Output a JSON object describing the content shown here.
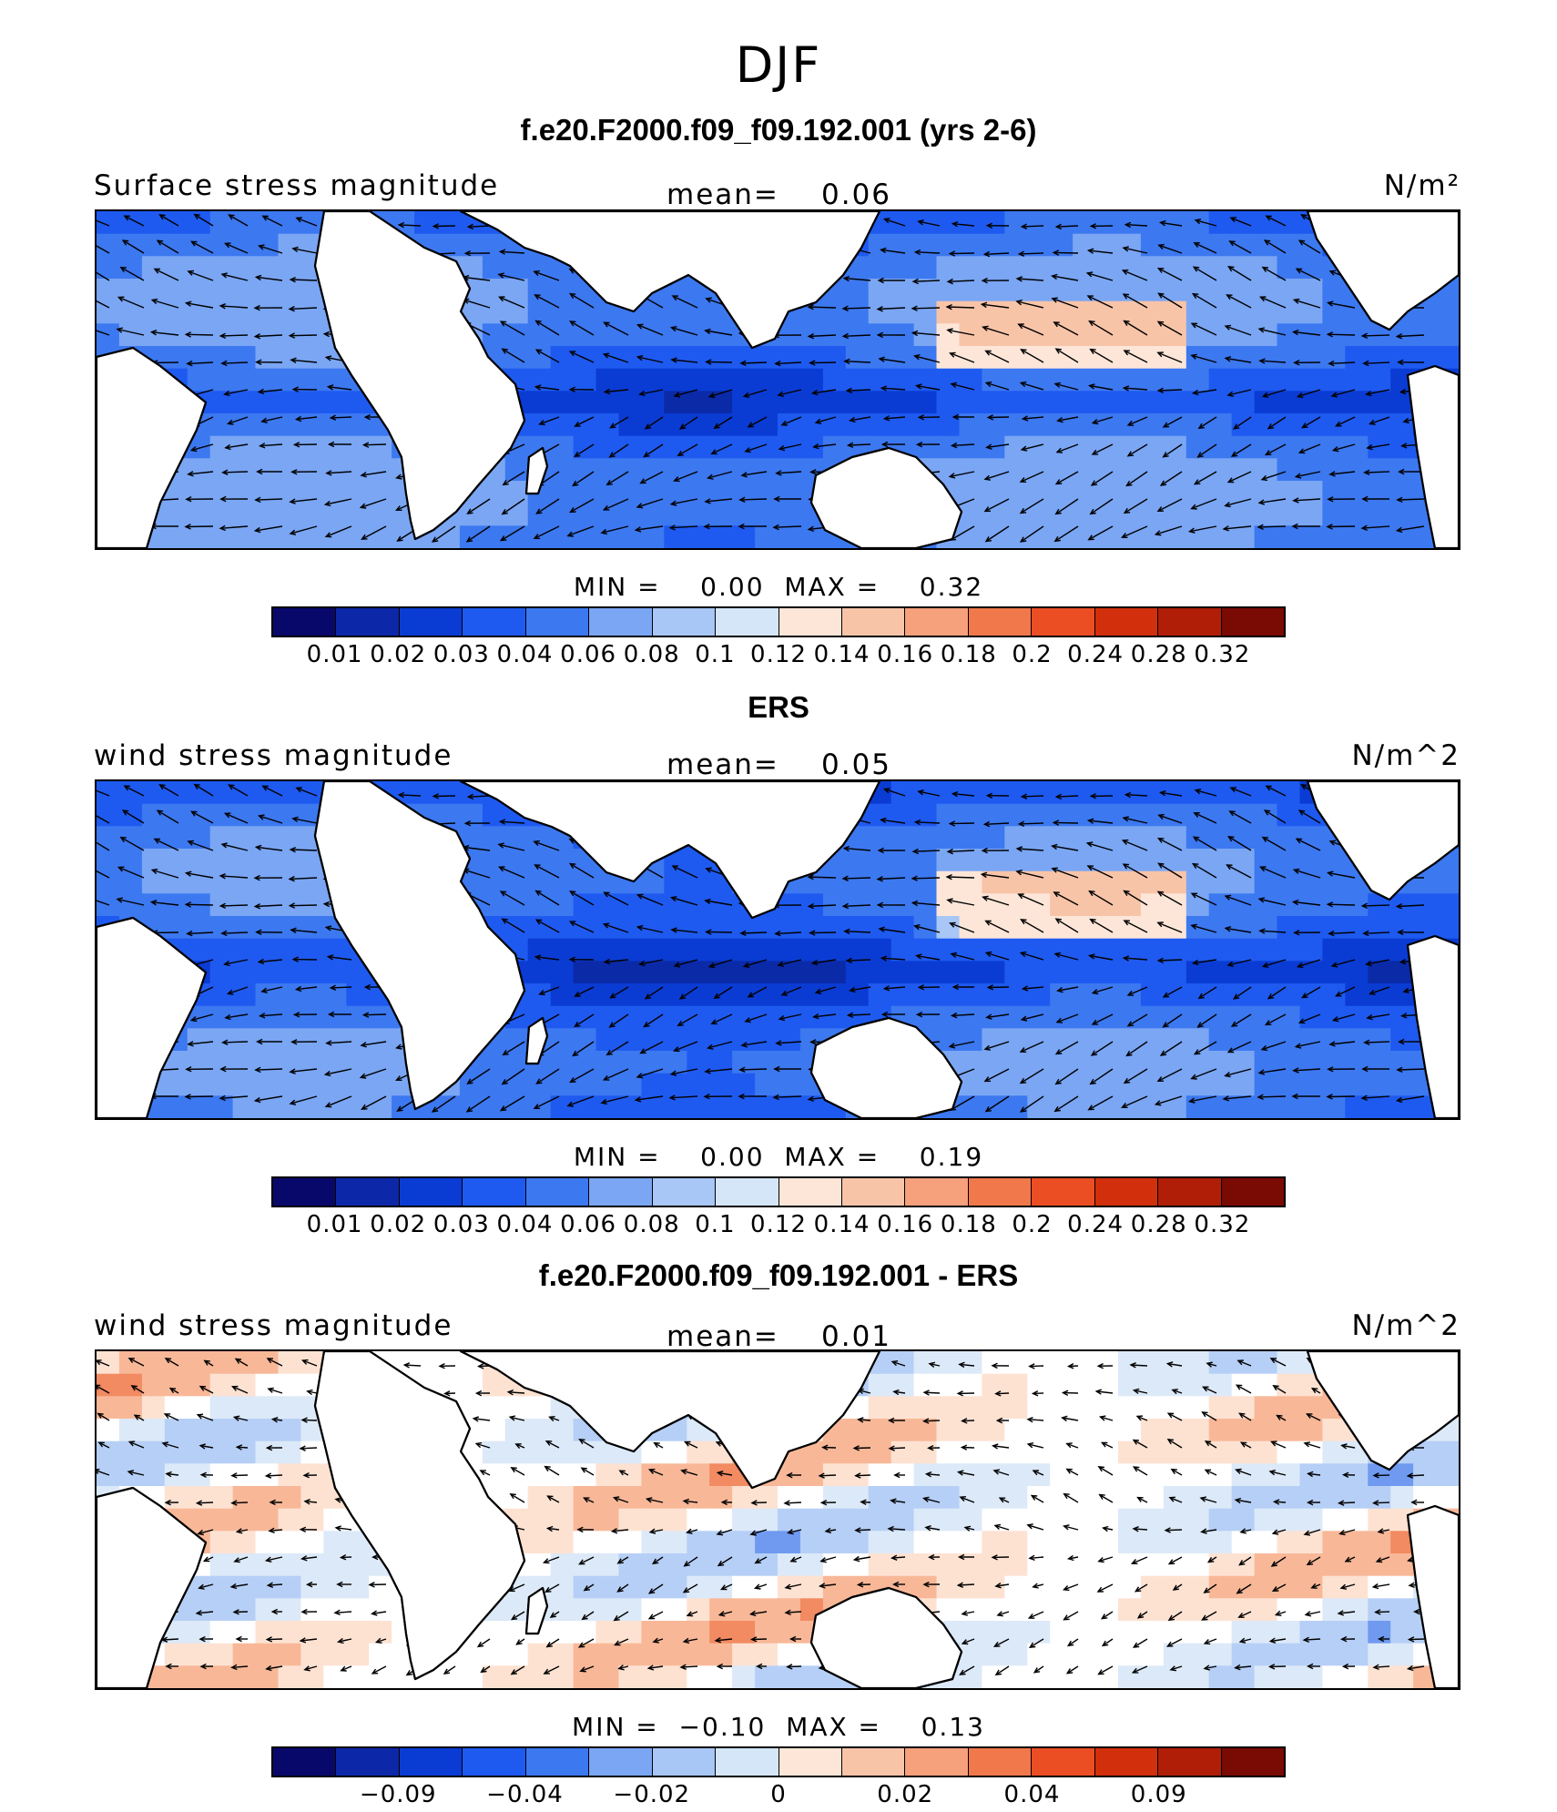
{
  "figure": {
    "season_title": "DJF"
  },
  "panels": [
    {
      "title": "f.e20.F2000.f09_f09.192.001 (yrs 2-6)",
      "variable_label": "Surface stress magnitude",
      "mean_label": "mean=",
      "mean_value": "0.06",
      "units": "N/m²",
      "min_max_text": "MIN =    0.00  MAX =    0.32",
      "colorbar_ticks": [
        "0.01",
        "0.02",
        "0.03",
        "0.04",
        "0.06",
        "0.08",
        "0.1",
        "0.12",
        "0.14",
        "0.16",
        "0.18",
        "0.2",
        "0.24",
        "0.28",
        "0.32"
      ],
      "colorbar_colors": [
        "#08086b",
        "#0c28a8",
        "#0a3cd4",
        "#1e5af0",
        "#3c78f0",
        "#7aa6f4",
        "#a8c6f6",
        "#d4e6f8",
        "#fde6d8",
        "#f8c4a8",
        "#f6a07c",
        "#f0784a",
        "#ec4e24",
        "#d2300c",
        "#b01e08",
        "#7a0a04"
      ],
      "map_style": "full"
    },
    {
      "title": "ERS",
      "variable_label": "wind stress magnitude",
      "mean_label": "mean=",
      "mean_value": "0.05",
      "units": "N/m^2",
      "min_max_text": "MIN =    0.00  MAX =    0.19",
      "colorbar_ticks": [
        "0.01",
        "0.02",
        "0.03",
        "0.04",
        "0.06",
        "0.08",
        "0.1",
        "0.12",
        "0.14",
        "0.16",
        "0.18",
        "0.2",
        "0.24",
        "0.28",
        "0.32"
      ],
      "colorbar_colors": [
        "#08086b",
        "#0c28a8",
        "#0a3cd4",
        "#1e5af0",
        "#3c78f0",
        "#7aa6f4",
        "#a8c6f6",
        "#d4e6f8",
        "#fde6d8",
        "#f8c4a8",
        "#f6a07c",
        "#f0784a",
        "#ec4e24",
        "#d2300c",
        "#b01e08",
        "#7a0a04"
      ],
      "map_style": "obs"
    },
    {
      "title": "f.e20.F2000.f09_f09.192.001 - ERS",
      "variable_label": "wind stress magnitude",
      "mean_label": "mean=",
      "mean_value": "0.01",
      "units": "N/m^2",
      "min_max_text": "MIN =  −0.10  MAX =    0.13",
      "colorbar_ticks": [
        "",
        "−0.09",
        "",
        "−0.04",
        "",
        "−0.02",
        "",
        "0",
        "",
        "0.02",
        "",
        "0.04",
        "",
        "0.09",
        ""
      ],
      "colorbar_colors": [
        "#08086b",
        "#0c28a8",
        "#0a3cd4",
        "#1e5af0",
        "#3c78f0",
        "#7aa6f4",
        "#a8c6f6",
        "#d4e6f8",
        "#fde6d8",
        "#f8c4a8",
        "#f6a07c",
        "#f0784a",
        "#ec4e24",
        "#d2300c",
        "#b01e08",
        "#7a0a04"
      ],
      "map_style": "diff"
    }
  ]
}
